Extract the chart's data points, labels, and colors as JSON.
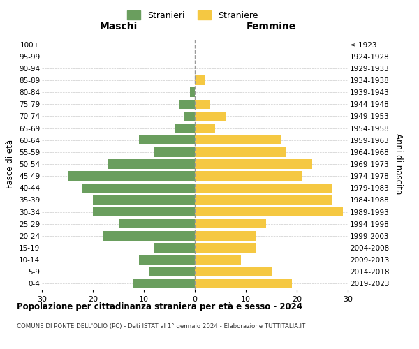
{
  "age_groups": [
    "0-4",
    "5-9",
    "10-14",
    "15-19",
    "20-24",
    "25-29",
    "30-34",
    "35-39",
    "40-44",
    "45-49",
    "50-54",
    "55-59",
    "60-64",
    "65-69",
    "70-74",
    "75-79",
    "80-84",
    "85-89",
    "90-94",
    "95-99",
    "100+"
  ],
  "birth_years": [
    "2019-2023",
    "2014-2018",
    "2009-2013",
    "2004-2008",
    "1999-2003",
    "1994-1998",
    "1989-1993",
    "1984-1988",
    "1979-1983",
    "1974-1978",
    "1969-1973",
    "1964-1968",
    "1959-1963",
    "1954-1958",
    "1949-1953",
    "1944-1948",
    "1939-1943",
    "1934-1938",
    "1929-1933",
    "1924-1928",
    "≤ 1923"
  ],
  "males": [
    12,
    9,
    11,
    8,
    18,
    15,
    20,
    20,
    22,
    25,
    17,
    8,
    11,
    4,
    2,
    3,
    1,
    0,
    0,
    0,
    0
  ],
  "females": [
    19,
    15,
    9,
    12,
    12,
    14,
    29,
    27,
    27,
    21,
    23,
    18,
    17,
    4,
    6,
    3,
    0,
    2,
    0,
    0,
    0
  ],
  "male_color": "#6a9e5e",
  "female_color": "#f5c842",
  "title": "Popolazione per cittadinanza straniera per età e sesso - 2024",
  "subtitle": "COMUNE DI PONTE DELL'OLIO (PC) - Dati ISTAT al 1° gennaio 2024 - Elaborazione TUTTITALIA.IT",
  "xlabel_left": "Maschi",
  "xlabel_right": "Femmine",
  "ylabel_left": "Fasce di età",
  "ylabel_right": "Anni di nascita",
  "legend_stranieri": "Stranieri",
  "legend_straniere": "Straniere",
  "xlim": 30,
  "background_color": "#ffffff",
  "grid_color": "#cccccc",
  "bar_height": 0.78
}
